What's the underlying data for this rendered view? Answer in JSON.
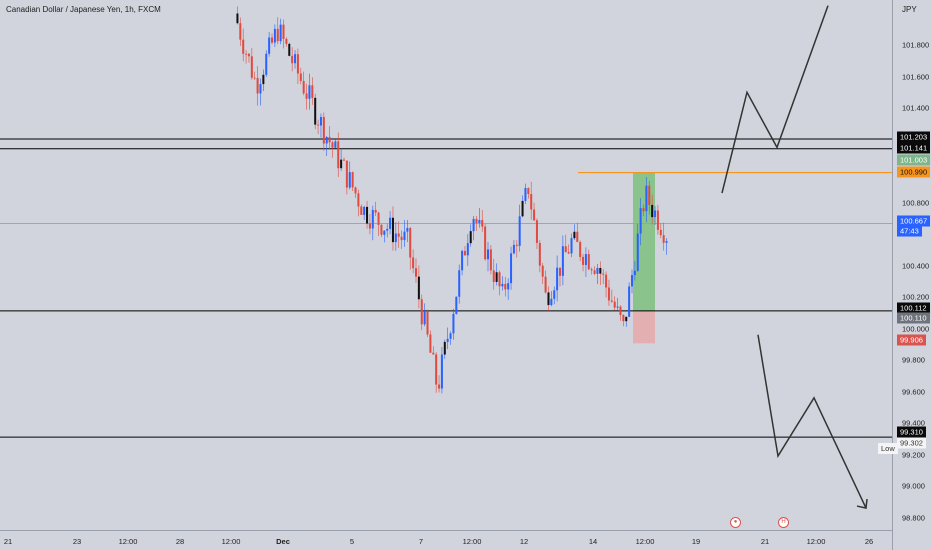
{
  "header": {
    "symbol_title": "Canadian Dollar / Japanese Yen, 1h, FXCM",
    "currency": "JPY"
  },
  "price_axis": {
    "tick_labels": [
      "101.800",
      "101.600",
      "101.400",
      "100.800",
      "100.400",
      "100.200",
      "100.000",
      "99.800",
      "99.600",
      "99.400",
      "99.200",
      "99.000",
      "98.800"
    ]
  },
  "time_axis": {
    "tick_labels": [
      "21",
      "23",
      "12:00",
      "28",
      "12:00",
      "Dec",
      "5",
      "7",
      "12:00",
      "12",
      "14",
      "12:00",
      "19",
      "21",
      "12:00",
      "26"
    ]
  },
  "price_tags": [
    {
      "value": "101.203",
      "style": "black"
    },
    {
      "value": "101.141",
      "style": "black"
    },
    {
      "value": "101.003",
      "style": "green"
    },
    {
      "value": "100.990",
      "style": "orange"
    },
    {
      "value": "100.667",
      "style": "blue"
    },
    {
      "value": "47:43",
      "style": "blue"
    },
    {
      "value": "100.112",
      "style": "black"
    },
    {
      "value": "100.110",
      "style": "grey"
    },
    {
      "value": "99.906",
      "style": "red"
    },
    {
      "value": "99.310",
      "style": "black"
    },
    {
      "value": "99.302",
      "style": "white"
    }
  ],
  "low_label": "Low",
  "colors": {
    "background": "#d1d4dc",
    "up_candle": "#2962ff",
    "down_candle": "#e04a3f",
    "wick": "#333333",
    "level_line": "#000000",
    "entry_line": "#f7941d",
    "current_price_line": "#7ea0f0",
    "profit_zone": "#7fbf7f",
    "loss_zone": "#e6a8a8",
    "projection_line": "#333333",
    "event_icon": "#d9544f"
  },
  "icons": [
    "economic-event-icon",
    "economic-event-icon"
  ],
  "chart_data": {
    "type": "candlestick",
    "title": "Canadian Dollar / Japanese Yen, 1h, FXCM",
    "ylabel": "JPY",
    "ylim": [
      98.7,
      102.05
    ],
    "grid": false,
    "horizontal_levels": [
      101.203,
      101.141,
      100.112,
      99.31
    ],
    "entry_level": 100.99,
    "current_price": 100.667,
    "position": {
      "entry": 100.99,
      "target": 101.003,
      "stop": 99.906,
      "entry_region_low": 100.11
    },
    "path_keypoints": [
      {
        "t": 0.0,
        "p": 102.0
      },
      {
        "t": 0.05,
        "p": 101.55
      },
      {
        "t": 0.1,
        "p": 101.9
      },
      {
        "t": 0.2,
        "p": 101.3
      },
      {
        "t": 0.3,
        "p": 100.75
      },
      {
        "t": 0.4,
        "p": 100.55
      },
      {
        "t": 0.47,
        "p": 99.62
      },
      {
        "t": 0.55,
        "p": 100.75
      },
      {
        "t": 0.62,
        "p": 100.2
      },
      {
        "t": 0.68,
        "p": 100.9
      },
      {
        "t": 0.72,
        "p": 100.2
      },
      {
        "t": 0.78,
        "p": 100.55
      },
      {
        "t": 0.84,
        "p": 100.4
      },
      {
        "t": 0.9,
        "p": 100.0
      },
      {
        "t": 0.95,
        "p": 100.85
      },
      {
        "t": 1.0,
        "p": 100.6
      }
    ],
    "bearish_projection": [
      {
        "time": "Dec 12",
        "price": 99.96
      },
      {
        "time": "Dec 21",
        "price": 99.19
      },
      {
        "time": "Dec 22",
        "price": 99.56
      },
      {
        "time": "Dec 26",
        "price": 98.86
      }
    ],
    "bullish_projection": [
      {
        "time": "Dec 12",
        "price": 100.86
      },
      {
        "time": "Dec 14",
        "price": 101.5
      },
      {
        "time": "Dec 19",
        "price": 101.15
      },
      {
        "time": "Dec 26",
        "price": 102.05
      }
    ]
  }
}
